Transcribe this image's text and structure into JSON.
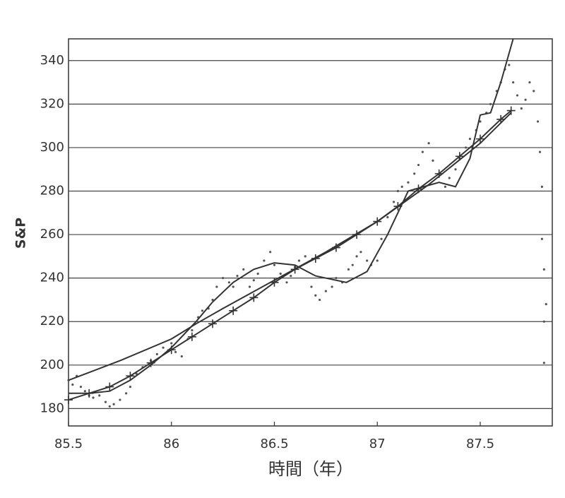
{
  "chart_data": {
    "type": "scatter",
    "xlabel": "時間（年）",
    "ylabel": "S&P",
    "xlim": [
      85.5,
      87.85
    ],
    "ylim": [
      172,
      350
    ],
    "xticks": [
      85.5,
      86,
      86.5,
      87,
      87.5
    ],
    "yticks": [
      180,
      200,
      220,
      240,
      260,
      280,
      300,
      320,
      340
    ],
    "grid": true,
    "series": [
      {
        "color": "#555555",
        "marker": "dot",
        "x": [
          85.5,
          85.52,
          85.54,
          85.56,
          85.58,
          85.6,
          85.62,
          85.65,
          85.68,
          85.7,
          85.72,
          85.75,
          85.78,
          85.8,
          85.83,
          85.86,
          85.9,
          85.93,
          85.96,
          86.0,
          86.02,
          86.05,
          86.08,
          86.1,
          86.13,
          86.15,
          86.18,
          86.2,
          86.22,
          86.25,
          86.28,
          86.3,
          86.32,
          86.35,
          86.38,
          86.4,
          86.42,
          86.45,
          86.48,
          86.5,
          86.53,
          86.56,
          86.58,
          86.6,
          86.62,
          86.65,
          86.68,
          86.7,
          86.72,
          86.75,
          86.78,
          86.8,
          86.83,
          86.86,
          86.88,
          86.9,
          86.92,
          86.95,
          86.97,
          87.0,
          87.02,
          87.05,
          87.08,
          87.1,
          87.12,
          87.15,
          87.18,
          87.2,
          87.22,
          87.25,
          87.27,
          87.3,
          87.33,
          87.35,
          87.38,
          87.4,
          87.43,
          87.45,
          87.48,
          87.5,
          87.53,
          87.55,
          87.58,
          87.6,
          87.62,
          87.64,
          87.66,
          87.68,
          87.7,
          87.72,
          87.74,
          87.76,
          87.78,
          87.79,
          87.8,
          87.8,
          87.81,
          87.81,
          87.82,
          87.81
        ],
        "values": [
          193,
          191,
          195,
          190,
          188,
          186,
          185,
          186,
          183,
          181,
          182,
          184,
          187,
          190,
          196,
          199,
          202,
          205,
          208,
          210,
          206,
          204,
          212,
          216,
          222,
          225,
          226,
          230,
          236,
          240,
          238,
          236,
          241,
          244,
          236,
          239,
          242,
          248,
          252,
          246,
          242,
          238,
          241,
          245,
          248,
          250,
          236,
          232,
          230,
          234,
          236,
          240,
          238,
          244,
          246,
          250,
          252,
          248,
          246,
          248,
          258,
          268,
          275,
          280,
          282,
          284,
          288,
          292,
          298,
          302,
          294,
          288,
          282,
          286,
          290,
          295,
          300,
          304,
          308,
          312,
          316,
          320,
          326,
          330,
          336,
          338,
          330,
          324,
          318,
          322,
          330,
          326,
          312,
          298,
          282,
          258,
          244,
          220,
          228,
          201
        ]
      },
      {
        "color": "#333333",
        "marker": "plus",
        "x": [
          85.5,
          85.6,
          85.7,
          85.8,
          85.9,
          86.0,
          86.1,
          86.2,
          86.3,
          86.4,
          86.5,
          86.6,
          86.7,
          86.8,
          86.9,
          87.0,
          87.1,
          87.2,
          87.3,
          87.4,
          87.5,
          87.6,
          87.65
        ],
        "values": [
          184,
          187,
          190,
          195,
          201,
          207,
          213,
          219,
          225,
          231,
          238,
          244,
          249,
          254,
          260,
          266,
          273,
          281,
          288,
          296,
          304,
          313,
          317
        ]
      },
      {
        "color": "#333333",
        "marker": "none",
        "x": [
          85.5,
          85.6,
          85.7,
          85.8,
          85.9,
          86.0,
          86.12,
          86.2,
          86.3,
          86.4,
          86.5,
          86.6,
          86.7,
          86.85,
          86.95,
          87.05,
          87.15,
          87.3,
          87.38,
          87.45,
          87.5,
          87.55,
          87.6,
          87.66
        ],
        "values": [
          187,
          187,
          188,
          193,
          200,
          208,
          220,
          229,
          238,
          244,
          247,
          246,
          241,
          238,
          243,
          260,
          280,
          284,
          282,
          295,
          315,
          316,
          330,
          350
        ]
      },
      {
        "color": "#333333",
        "marker": "none",
        "x": [
          85.5,
          85.75,
          86.0,
          86.12,
          86.25,
          86.5,
          86.75,
          87.0,
          87.25,
          87.5,
          87.65
        ],
        "values": [
          193,
          202,
          212,
          219,
          226,
          239,
          252,
          266,
          283,
          302,
          316
        ]
      }
    ]
  }
}
